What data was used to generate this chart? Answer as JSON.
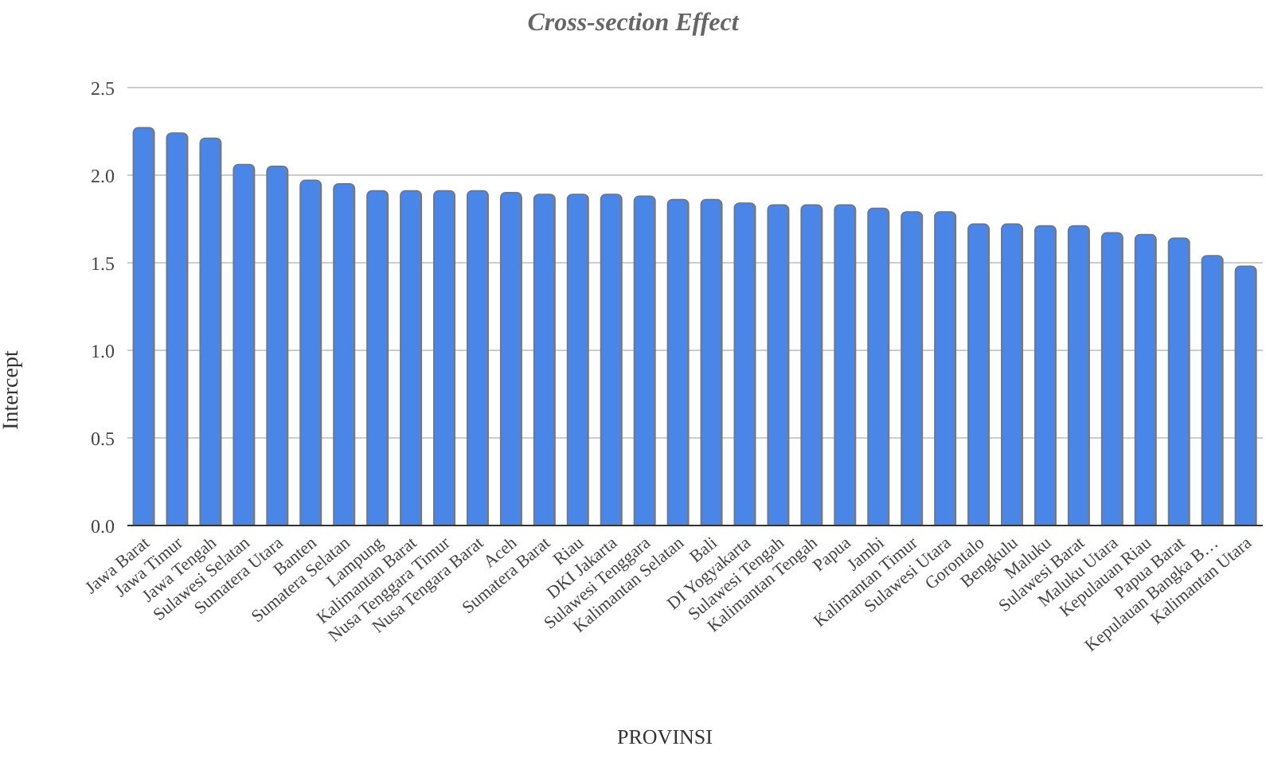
{
  "chart_data": {
    "type": "bar",
    "title": "Cross-section Effect",
    "xlabel": "PROVINSI",
    "ylabel": "Intercept",
    "categories": [
      "Jawa Barat",
      "Jawa Timur",
      "Jawa Tengah",
      "Sulawesi Selatan",
      "Sumatera Utara",
      "Banten",
      "Sumatera Selatan",
      "Lampung",
      "Kalimantan Barat",
      "Nusa Tenggara Timur",
      "Nusa Tengara Barat",
      "Aceh",
      "Sumatera Barat",
      "Riau",
      "DKI Jakarta",
      "Sulawesi Tenggara",
      "Kalimantan Selatan",
      "Bali",
      "DI Yogyakarta",
      "Sulawesi Tengah",
      "Kalimantan Tengah",
      "Papua",
      "Jambi",
      "Kalimantan Timur",
      "Sulawesi Utara",
      "Gorontalo",
      "Bengkulu",
      "Maluku",
      "Sulawesi Barat",
      "Maluku Utara",
      "Kepulauan Riau",
      "Papua Barat",
      "Kepulauan Bangka B…",
      "Kalimantan Utara"
    ],
    "values": [
      2.27,
      2.24,
      2.21,
      2.06,
      2.05,
      1.97,
      1.95,
      1.91,
      1.91,
      1.91,
      1.91,
      1.9,
      1.89,
      1.89,
      1.89,
      1.88,
      1.86,
      1.86,
      1.84,
      1.83,
      1.83,
      1.83,
      1.81,
      1.79,
      1.79,
      1.72,
      1.72,
      1.71,
      1.71,
      1.67,
      1.66,
      1.64,
      1.54,
      1.48
    ],
    "color": "#4a86e8",
    "ylim": [
      0,
      2.5
    ],
    "yticks": [
      {
        "value": 0,
        "label": "0.0"
      },
      0.5,
      {
        "value": 1,
        "label": "1.0"
      },
      1.5,
      {
        "value": 2,
        "label": "2.0"
      },
      2.5
    ],
    "grid": "y",
    "legend": false
  }
}
